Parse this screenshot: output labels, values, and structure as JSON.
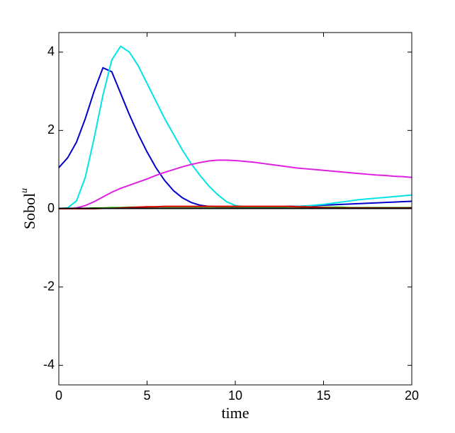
{
  "chart_data": {
    "type": "line",
    "xlabel": "time",
    "ylabel": "Sobol",
    "ylabel_superscript": "u",
    "xlim": [
      0,
      20
    ],
    "ylim": [
      -4.5,
      4.5
    ],
    "xticks": [
      0,
      5,
      10,
      15,
      20
    ],
    "yticks": [
      -4,
      -2,
      0,
      2,
      4
    ],
    "grid": false,
    "x": [
      0,
      0.5,
      1,
      1.5,
      2,
      2.5,
      3,
      3.5,
      4,
      4.5,
      5,
      5.5,
      6,
      6.5,
      7,
      7.5,
      8,
      8.5,
      9,
      9.5,
      10,
      10.5,
      11,
      11.5,
      12,
      12.5,
      13,
      13.5,
      14,
      14.5,
      15,
      15.5,
      16,
      16.5,
      17,
      17.5,
      18,
      18.5,
      19,
      19.5,
      20
    ],
    "series": [
      {
        "color": "#0000c8",
        "values": [
          1.05,
          1.3,
          1.7,
          2.3,
          3.0,
          3.6,
          3.5,
          2.95,
          2.4,
          1.9,
          1.45,
          1.05,
          0.72,
          0.46,
          0.28,
          0.16,
          0.09,
          0.06,
          0.05,
          0.05,
          0.05,
          0.05,
          0.05,
          0.05,
          0.05,
          0.05,
          0.06,
          0.06,
          0.07,
          0.08,
          0.09,
          0.1,
          0.11,
          0.12,
          0.13,
          0.14,
          0.15,
          0.16,
          0.17,
          0.18,
          0.19
        ]
      },
      {
        "color": "#00e5e5",
        "values": [
          0,
          0.02,
          0.2,
          0.8,
          1.8,
          2.9,
          3.8,
          4.15,
          4.0,
          3.65,
          3.2,
          2.75,
          2.3,
          1.9,
          1.5,
          1.15,
          0.85,
          0.58,
          0.36,
          0.18,
          0.08,
          0.05,
          0.04,
          0.04,
          0.04,
          0.04,
          0.05,
          0.06,
          0.07,
          0.09,
          0.11,
          0.14,
          0.17,
          0.2,
          0.23,
          0.25,
          0.27,
          0.29,
          0.31,
          0.33,
          0.35
        ]
      },
      {
        "color": "#e020e0",
        "values": [
          0,
          0,
          0.02,
          0.08,
          0.18,
          0.3,
          0.42,
          0.52,
          0.6,
          0.68,
          0.76,
          0.85,
          0.93,
          1.0,
          1.07,
          1.13,
          1.18,
          1.22,
          1.24,
          1.24,
          1.23,
          1.21,
          1.19,
          1.16,
          1.13,
          1.1,
          1.07,
          1.04,
          1.02,
          1.0,
          0.98,
          0.96,
          0.94,
          0.92,
          0.9,
          0.88,
          0.86,
          0.85,
          0.83,
          0.82,
          0.8
        ]
      },
      {
        "color": "#33cc00",
        "values": [
          0,
          0,
          0.01,
          0.01,
          0.02,
          0.02,
          0.03,
          0.03,
          0.04,
          0.04,
          0.05,
          0.05,
          0.05,
          0.05,
          0.05,
          0.05,
          0.05,
          0.05,
          0.05,
          0.05,
          0.05,
          0.05,
          0.05,
          0.05,
          0.05,
          0.05,
          0.05,
          0.05,
          0.04,
          0.04,
          0.04,
          0.04,
          0.04,
          0.03,
          0.03,
          0.03,
          0.03,
          0.03,
          0.03,
          0.03,
          0.03
        ]
      },
      {
        "color": "#e00000",
        "values": [
          0,
          0,
          0,
          0,
          0,
          0.01,
          0.01,
          0.02,
          0.03,
          0.04,
          0.05,
          0.05,
          0.06,
          0.06,
          0.06,
          0.06,
          0.06,
          0.06,
          0.06,
          0.06,
          0.06,
          0.06,
          0.06,
          0.06,
          0.06,
          0.06,
          0.06,
          0.05,
          0.05,
          0.04,
          0.03,
          0.02,
          0.02,
          0.02,
          0.02,
          0.02,
          0.02,
          0.02,
          0.02,
          0.02,
          0.02
        ]
      },
      {
        "color": "#000000",
        "values": [
          0.01,
          0.01,
          0.01,
          0.01,
          0.01,
          0.01,
          0.01,
          0.01,
          0.01,
          0.01,
          0.01,
          0.01,
          0.01,
          0.01,
          0.01,
          0.01,
          0.01,
          0.01,
          0.01,
          0.01,
          0.01,
          0.01,
          0.01,
          0.01,
          0.01,
          0.01,
          0.01,
          0.01,
          0.01,
          0.01,
          0.01,
          0.01,
          0.01,
          0.01,
          0.01,
          0.01,
          0.01,
          0.01,
          0.01,
          0.01,
          0.01
        ]
      }
    ]
  }
}
